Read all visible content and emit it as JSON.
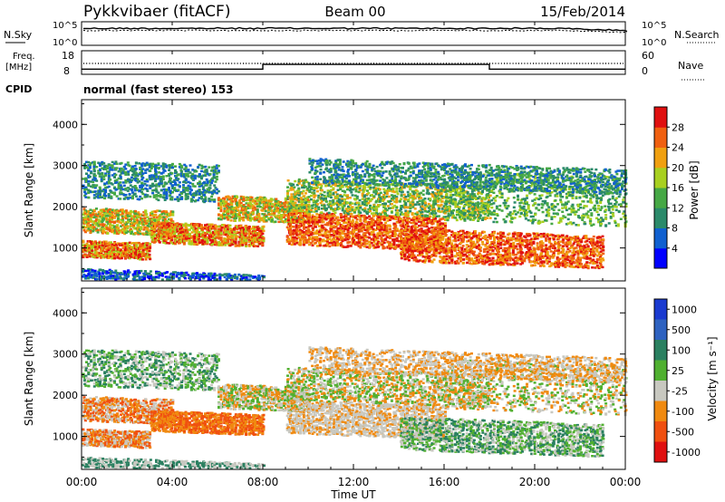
{
  "header": {
    "station": "Pykkvibaer (fitACF)",
    "beam": "Beam 00",
    "date": "15/Feb/2014"
  },
  "panels": {
    "nsky": {
      "left_label": "N.Sky",
      "right_label": "N.Search",
      "left_ticks": [
        "10^5",
        "10^0"
      ],
      "right_ticks": [
        "10^5",
        "10^0"
      ]
    },
    "freq": {
      "left_label_1": "Freq.",
      "left_label_2": "[MHz]",
      "left_ticks": [
        "18",
        "8"
      ],
      "right_label": "Nave",
      "right_ticks": [
        "60",
        "0"
      ],
      "freq_steps": [
        {
          "from": 0,
          "to": 8,
          "level": 0.22
        },
        {
          "from": 8,
          "to": 18,
          "level": 0.42
        },
        {
          "from": 18,
          "to": 24,
          "level": 0.22
        }
      ]
    },
    "cpid": {
      "label": "CPID",
      "text": "normal (fast stereo) 153"
    }
  },
  "chart_data": [
    {
      "type": "heatmap",
      "name": "power",
      "ylabel": "Slant Range [km]",
      "yticks": [
        1000,
        2000,
        3000,
        4000
      ],
      "ylim": [
        200,
        4600
      ],
      "xlim": [
        0,
        24
      ],
      "colorbar": {
        "label": "Power [dB]",
        "ticks": [
          "4",
          "8",
          "12",
          "16",
          "20",
          "24",
          "28"
        ],
        "colors": [
          "#0000ff",
          "#1060d0",
          "#2b8a6a",
          "#46a845",
          "#a8d020",
          "#f0a010",
          "#f06010",
          "#e01010"
        ]
      }
    },
    {
      "type": "heatmap",
      "name": "velocity",
      "ylabel": "Slant Range [km]",
      "yticks": [
        1000,
        2000,
        3000,
        4000
      ],
      "ylim": [
        200,
        4600
      ],
      "xlim": [
        0,
        24
      ],
      "colorbar": {
        "label": "Velocity [m s⁻¹]",
        "ticks": [
          "1000",
          "500",
          "100",
          "25",
          "-25",
          "-100",
          "-500",
          "-1000"
        ],
        "colors": [
          "#1a3ad0",
          "#2e62c0",
          "#2a8060",
          "#50b030",
          "#c8c8c0",
          "#f08a10",
          "#f05010",
          "#e01010"
        ]
      }
    }
  ],
  "xaxis": {
    "ticks": [
      "00:00",
      "04:00",
      "08:00",
      "12:00",
      "16:00",
      "20:00",
      "00:00"
    ],
    "label": "Time UT"
  }
}
